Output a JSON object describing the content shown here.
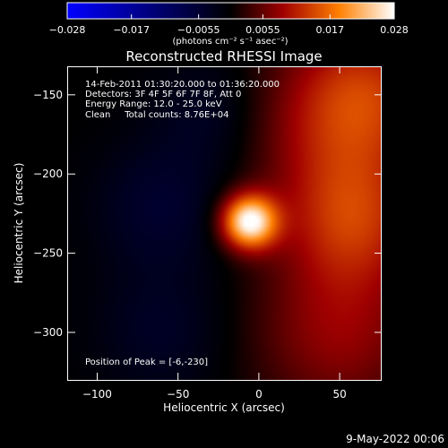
{
  "chart_data": {
    "type": "heatmap",
    "title": "Reconstructed RHESSI Image",
    "xlabel": "Heliocentric X (arcsec)",
    "ylabel": "Heliocentric Y (arcsec)",
    "xlim": [
      -118,
      76
    ],
    "ylim": [
      -330,
      -132
    ],
    "x_ticks": [
      -100,
      -50,
      0,
      50
    ],
    "y_ticks": [
      -150,
      -200,
      -250,
      -300
    ],
    "colorbar": {
      "ticks": [
        -0.028,
        -0.017,
        -0.0055,
        0.0055,
        0.017,
        0.028
      ],
      "tick_labels": [
        "−0.028",
        "−0.017",
        "−0.0055",
        "0.0055",
        "0.017",
        "0.028"
      ],
      "range": [
        -0.028,
        0.028
      ],
      "unit_label": "(photons cm⁻² s⁻¹ asec⁻²)"
    },
    "annotations": [
      "14-Feb-2011 01:30:20.000 to 01:36:20.000",
      "Detectors: 3F 4F 5F 6F 7F 8F, Att 0",
      "Energy Range: 12.0 - 25.0 keV",
      "Clean     Total counts: 8.76E+04"
    ],
    "peak_label": "Position of Peak = [-6,-230]",
    "footer_date": "9-May-2022 00:06",
    "sources": [
      {
        "x": -6,
        "y": -230,
        "value": 0.028,
        "sigma": 12
      },
      {
        "x": 50,
        "y": -170,
        "value": 0.009,
        "sigma": 40
      },
      {
        "x": 58,
        "y": -230,
        "value": 0.01,
        "sigma": 30
      },
      {
        "x": 50,
        "y": -300,
        "value": 0.008,
        "sigma": 38
      },
      {
        "x": 68,
        "y": -145,
        "value": 0.007,
        "sigma": 30
      },
      {
        "x": -60,
        "y": -220,
        "value": -0.005,
        "sigma": 30
      },
      {
        "x": -30,
        "y": -160,
        "value": -0.004,
        "sigma": 25
      },
      {
        "x": -60,
        "y": -300,
        "value": -0.004,
        "sigma": 30
      }
    ]
  }
}
